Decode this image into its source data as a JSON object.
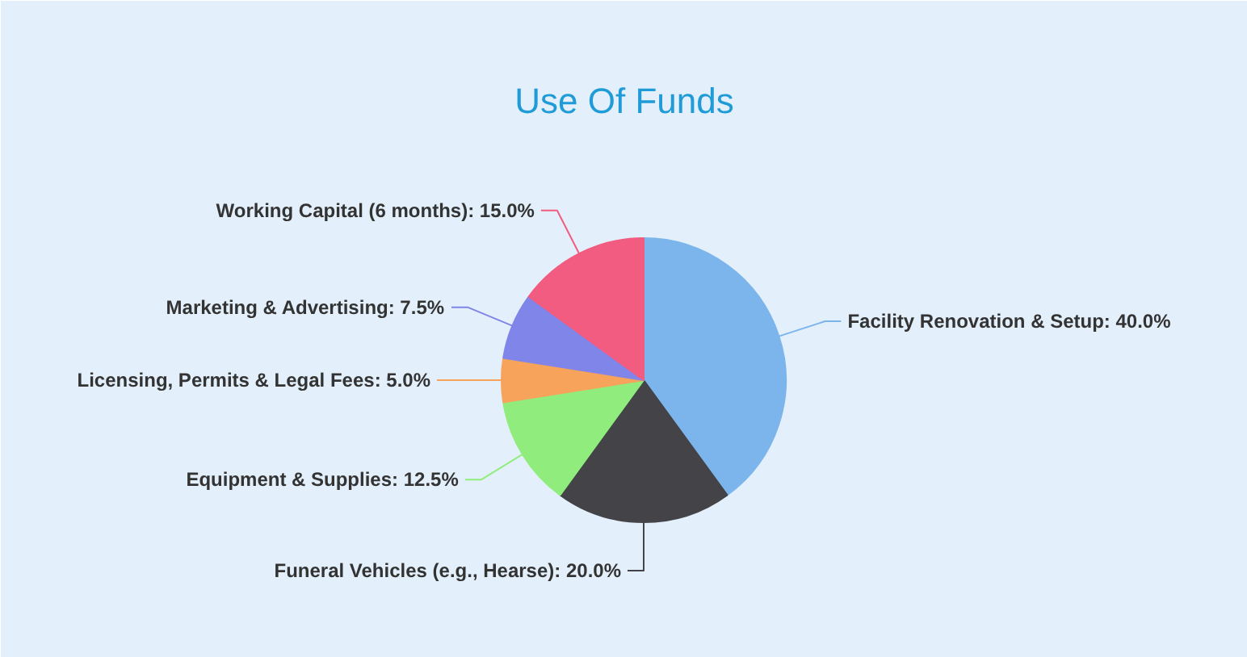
{
  "chart_data": {
    "type": "pie",
    "title": "Use Of Funds",
    "categories": [
      "Facility Renovation & Setup",
      "Funeral Vehicles (e.g., Hearse)",
      "Equipment & Supplies",
      "Licensing, Permits & Legal Fees",
      "Marketing & Advertising",
      "Working Capital (6 months)"
    ],
    "values": [
      40,
      20,
      12.5,
      5,
      7.5,
      15
    ],
    "value_labels": [
      "40.0%",
      "20.0%",
      "12.5%",
      "5.0%",
      "7.5%",
      "15.0%"
    ],
    "colors": [
      "#7cb5ec",
      "#434348",
      "#90ed7d",
      "#f7a35c",
      "#8085e9",
      "#f15c80"
    ]
  }
}
